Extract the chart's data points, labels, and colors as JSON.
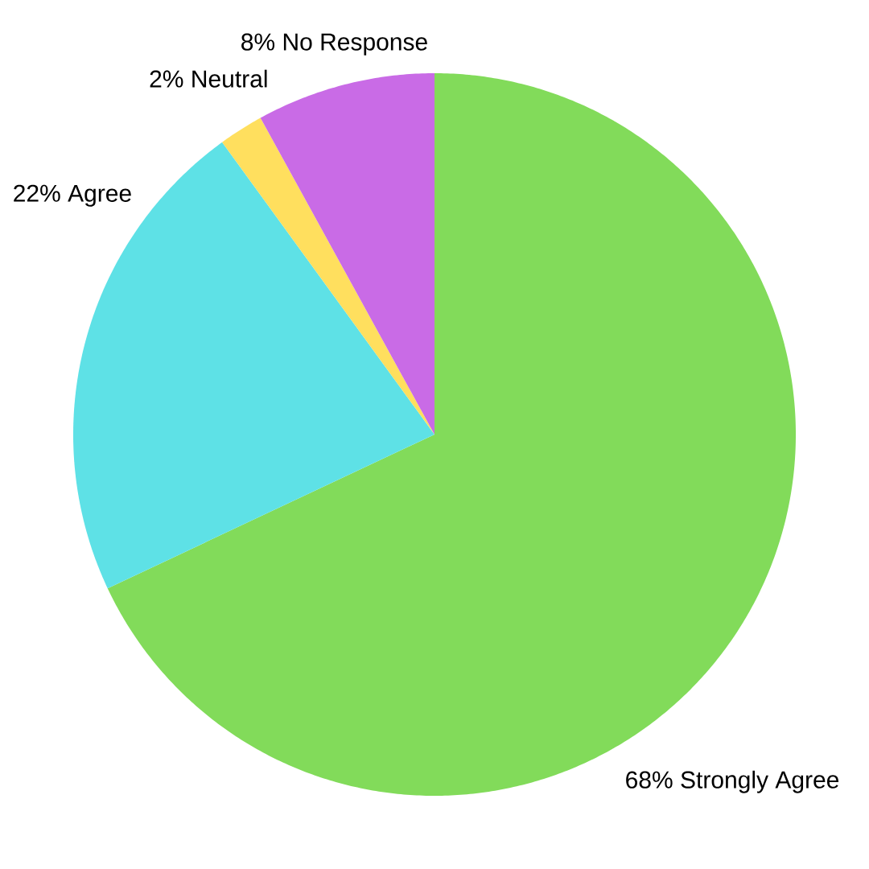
{
  "chart_data": {
    "type": "pie",
    "categories": [
      "Strongly Agree",
      "Agree",
      "Neutral",
      "No Response"
    ],
    "values": [
      68,
      22,
      2,
      8
    ],
    "value_labels": [
      "68%",
      "22%",
      "2%",
      "8%"
    ],
    "colors": [
      "#82db5a",
      "#5ee1e6",
      "#ffdf5e",
      "#c96be6"
    ]
  }
}
